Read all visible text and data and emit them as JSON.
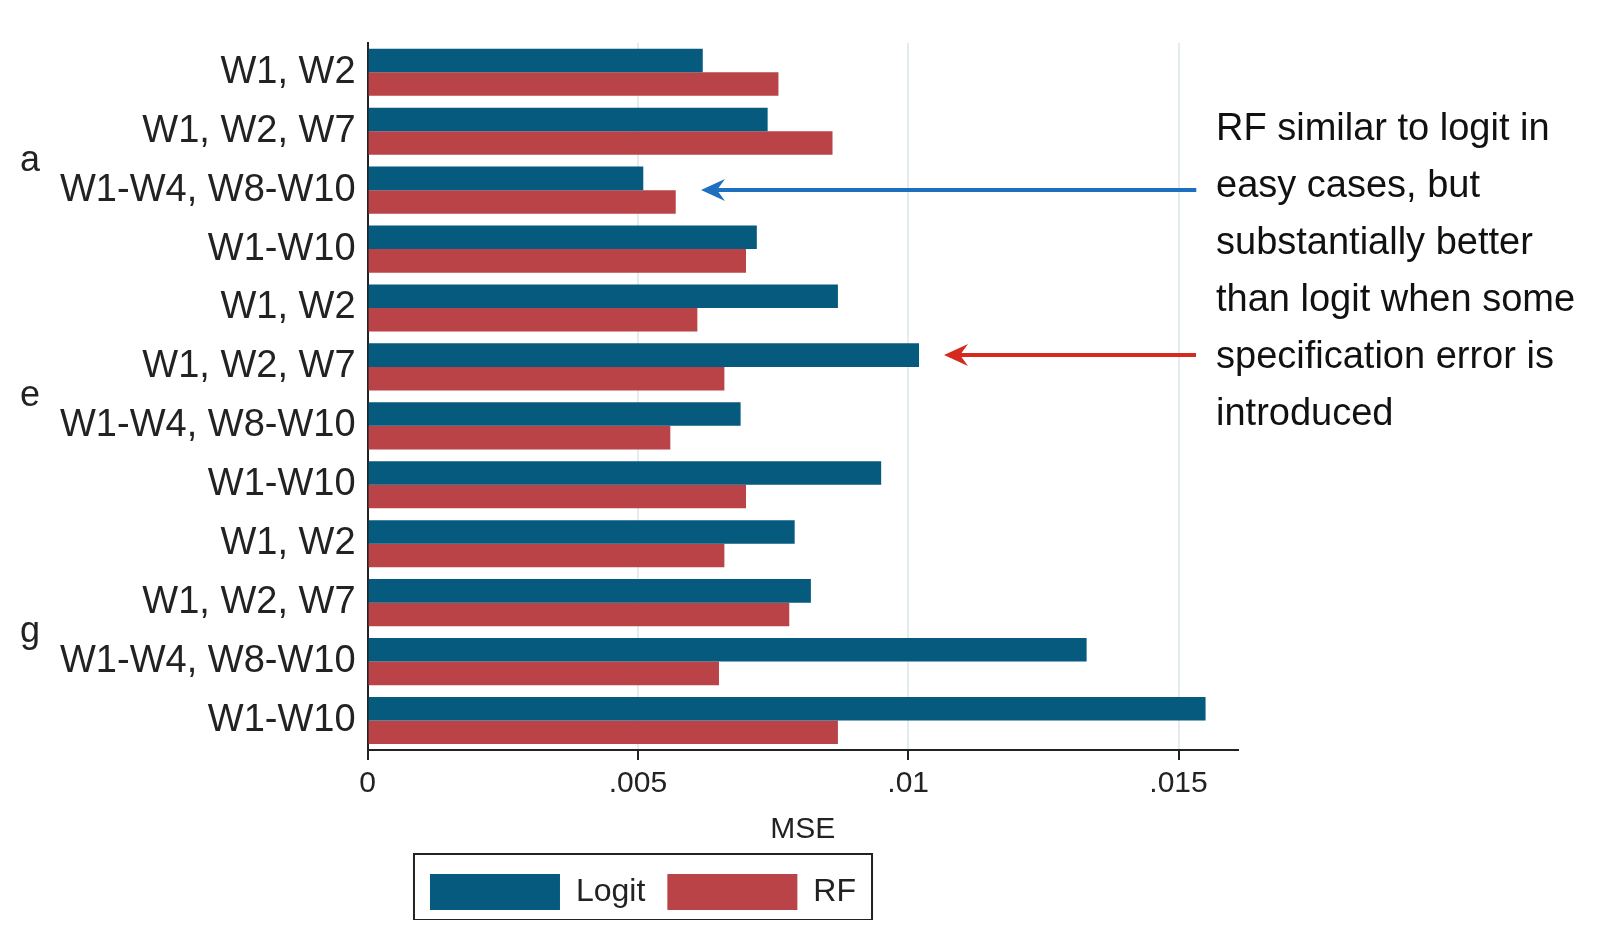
{
  "chart_data": {
    "type": "bar",
    "orientation": "horizontal",
    "categories": [
      "W1, W2",
      "W1, W2, W7",
      "W1-W4, W8-W10",
      "W1-W10",
      "W1, W2",
      "W1, W2, W7",
      "W1-W4, W8-W10",
      "W1-W10",
      "W1, W2",
      "W1, W2, W7",
      "W1-W4, W8-W10",
      "W1-W10"
    ],
    "series": [
      {
        "name": "Logit",
        "color": "#055a7d",
        "values": [
          0.0062,
          0.0074,
          0.0051,
          0.0072,
          0.0087,
          0.0102,
          0.0069,
          0.0095,
          0.0079,
          0.0082,
          0.0133,
          0.0155
        ]
      },
      {
        "name": "RF",
        "color": "#b94346",
        "values": [
          0.0076,
          0.0086,
          0.0057,
          0.007,
          0.0061,
          0.0066,
          0.0056,
          0.007,
          0.0066,
          0.0078,
          0.0065,
          0.0087
        ]
      }
    ],
    "xlabel": "MSE",
    "xlim": [
      0,
      0.0161
    ],
    "xticks": [
      0,
      {
        "value": 0.005,
        "label": ".005"
      },
      {
        "value": 0.01,
        "label": ".01"
      },
      {
        "value": 0.015,
        "label": ".015"
      }
    ],
    "grid": "x",
    "legend": "bottom",
    "annotations": [
      "a",
      "e",
      "g",
      "RF similar to logit in easy cases, but substantially better than logit when some specification error is introduced"
    ]
  }
}
